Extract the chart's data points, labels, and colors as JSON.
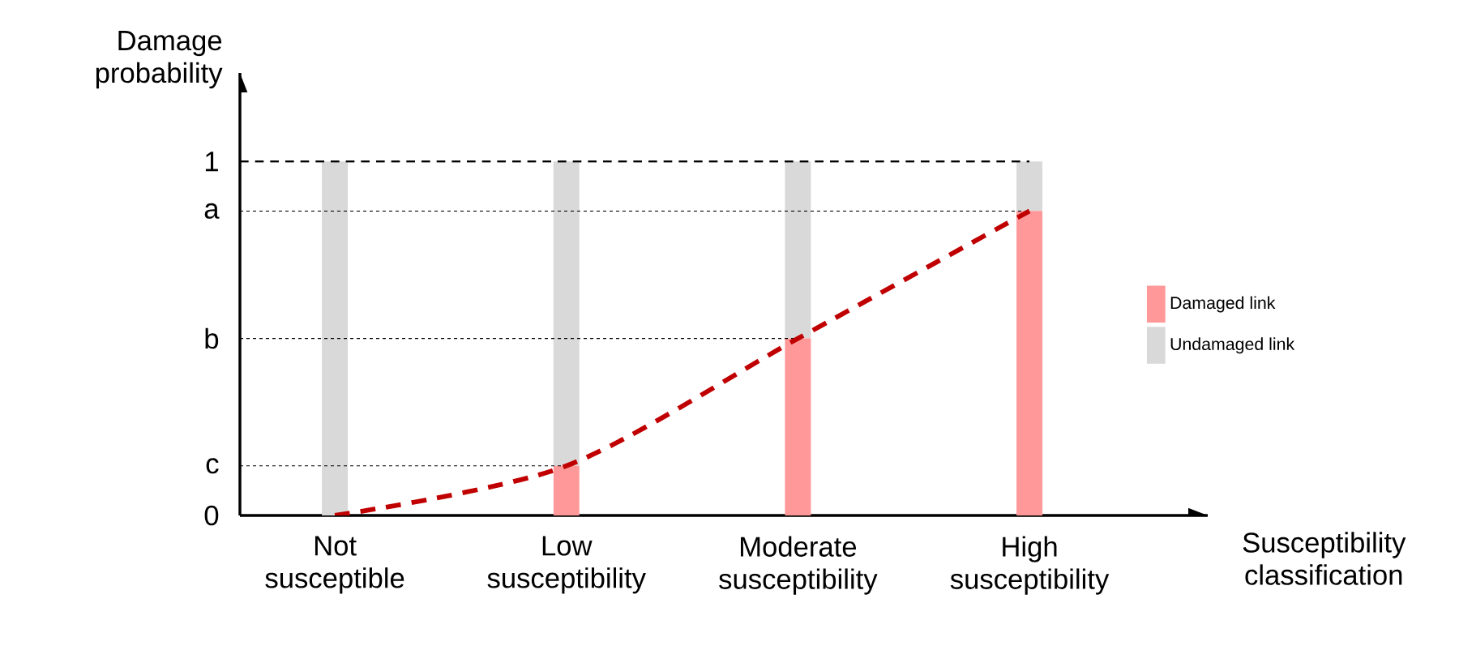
{
  "chart_data": {
    "type": "bar",
    "stacked": true,
    "xlabel": "Susceptibility classification",
    "ylabel": "Damage probability",
    "categories": [
      "Not susceptible",
      "Low susceptibility",
      "Moderate susceptibility",
      "High susceptibility"
    ],
    "series": [
      {
        "name": "Damaged link",
        "color": "#ff9999",
        "values": [
          0,
          0.14,
          0.5,
          0.86
        ]
      },
      {
        "name": "Undamaged link",
        "color": "#d9d9d9",
        "values": [
          1,
          0.86,
          0.5,
          0.14
        ]
      },
      {
        "type": "line",
        "color": "#c00000",
        "line_style": "dashed",
        "values": [
          0,
          0.14,
          0.5,
          0.86
        ]
      }
    ],
    "ylim": [
      0,
      1.25
    ],
    "yticks": [
      0,
      {
        "value": 0.14,
        "label": "c"
      },
      {
        "value": 0.5,
        "label": "b"
      },
      {
        "value": 0.86,
        "label": "a"
      },
      1
    ],
    "ref_lines": [
      {
        "axis": "y",
        "value": 1,
        "color": "#000000",
        "line_style": "dashed"
      },
      {
        "axis": "y",
        "value": 0.86,
        "color": "#000000",
        "line_style": "dotted"
      },
      {
        "axis": "y",
        "value": 0.5,
        "color": "#000000",
        "line_style": "dotted"
      },
      {
        "axis": "y",
        "value": 0.14,
        "color": "#000000",
        "line_style": "dotted"
      }
    ],
    "legend": "right"
  }
}
